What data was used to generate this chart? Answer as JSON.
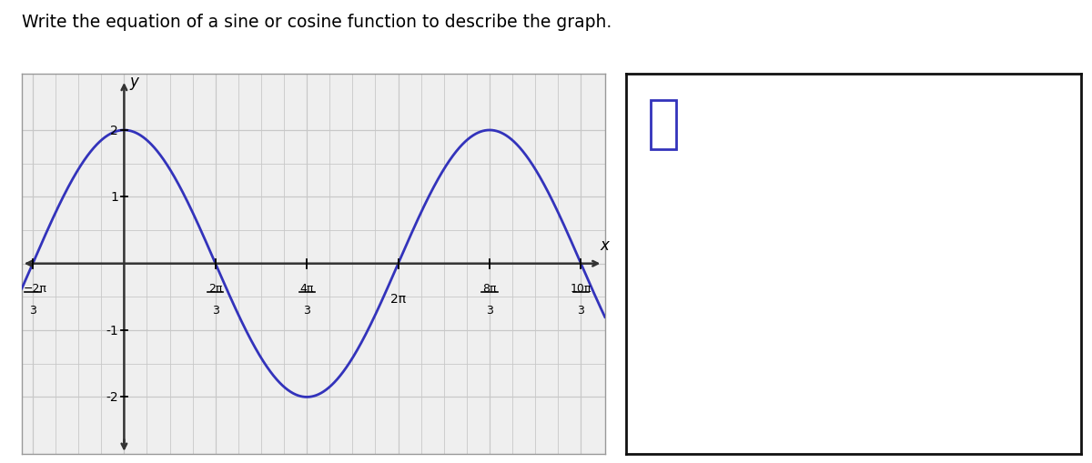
{
  "title": "Write the equation of a sine or cosine function to describe the graph.",
  "amplitude": 2,
  "B": 0.75,
  "curve_color": "#3333bb",
  "grid_color": "#c8c8c8",
  "axis_color": "#333333",
  "bg_color": "#ffffff",
  "plot_bg": "#efefef",
  "answer_box_color": "#111111",
  "answer_box_blue": "#3333bb",
  "x_tick_vals_pi_mult": [
    -0.6667,
    0.6667,
    1.3333,
    2.0,
    2.6667,
    3.3333
  ],
  "x_tick_numerators": [
    "2",
    "2",
    "4",
    "2",
    "8",
    "10"
  ],
  "x_tick_denominators": [
    "3",
    "3",
    "3",
    "",
    "3",
    "3"
  ],
  "x_tick_negatives": [
    true,
    false,
    false,
    false,
    false,
    false
  ],
  "y_ticks": [
    -2,
    -1,
    1,
    2
  ]
}
